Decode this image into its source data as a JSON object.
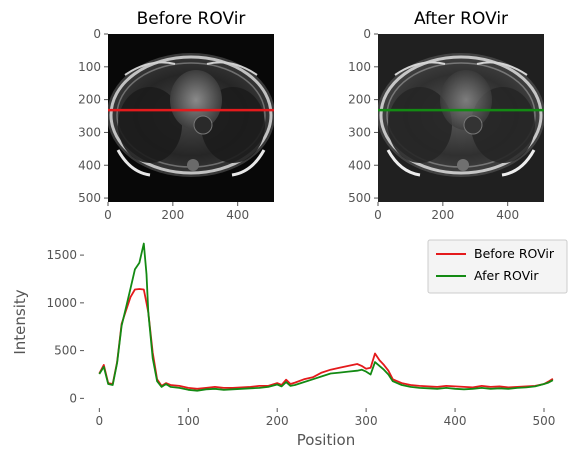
{
  "chart_data": [
    {
      "type": "image",
      "title": "Before ROVir",
      "xticks": [
        "0",
        "200",
        "400"
      ],
      "yticks": [
        "0",
        "100",
        "200",
        "300",
        "400",
        "500"
      ],
      "xlim": [
        0,
        512
      ],
      "ylim": [
        512,
        0
      ],
      "profile_line_y": 232,
      "profile_line_color": "#e41a1c"
    },
    {
      "type": "image",
      "title": "After ROVir",
      "xticks": [
        "0",
        "200",
        "400"
      ],
      "yticks": [
        "0",
        "100",
        "200",
        "300",
        "400",
        "500"
      ],
      "xlim": [
        0,
        512
      ],
      "ylim": [
        512,
        0
      ],
      "profile_line_y": 232,
      "profile_line_color": "#138a13"
    },
    {
      "type": "line",
      "xlabel": "Position",
      "ylabel": "Intensity",
      "xlim": [
        -15,
        527
      ],
      "ylim": [
        -80,
        1700
      ],
      "xticks": [
        0,
        100,
        200,
        300,
        400,
        500
      ],
      "yticks": [
        0,
        500,
        1000,
        1500
      ],
      "grid": false,
      "legend_position": "top-right",
      "series": [
        {
          "name": "Before ROVir",
          "color": "#e41a1c",
          "x": [
            0,
            5,
            10,
            15,
            20,
            25,
            30,
            35,
            40,
            45,
            50,
            53,
            55,
            60,
            65,
            70,
            75,
            80,
            90,
            100,
            110,
            120,
            130,
            140,
            150,
            160,
            170,
            180,
            190,
            200,
            205,
            210,
            215,
            220,
            230,
            240,
            250,
            260,
            270,
            280,
            290,
            295,
            300,
            305,
            310,
            315,
            320,
            325,
            330,
            340,
            350,
            360,
            370,
            380,
            390,
            400,
            410,
            420,
            430,
            440,
            450,
            460,
            470,
            480,
            490,
            500,
            505,
            510
          ],
          "y": [
            260,
            350,
            160,
            150,
            380,
            780,
            920,
            1060,
            1140,
            1145,
            1140,
            1000,
            900,
            480,
            200,
            130,
            160,
            140,
            130,
            110,
            100,
            110,
            120,
            110,
            110,
            115,
            120,
            130,
            130,
            160,
            140,
            195,
            150,
            165,
            200,
            220,
            270,
            300,
            320,
            340,
            360,
            340,
            310,
            320,
            470,
            400,
            350,
            290,
            200,
            160,
            140,
            130,
            125,
            120,
            130,
            125,
            120,
            115,
            130,
            120,
            125,
            115,
            120,
            125,
            130,
            150,
            175,
            205
          ]
        },
        {
          "name": "Afer ROVir",
          "color": "#138a13",
          "x": [
            0,
            5,
            10,
            15,
            20,
            25,
            30,
            35,
            40,
            45,
            48,
            50,
            53,
            55,
            60,
            65,
            70,
            75,
            80,
            90,
            100,
            110,
            120,
            130,
            140,
            150,
            160,
            170,
            180,
            190,
            200,
            205,
            210,
            215,
            220,
            230,
            240,
            250,
            260,
            270,
            280,
            290,
            295,
            300,
            305,
            310,
            315,
            320,
            325,
            330,
            340,
            350,
            360,
            370,
            380,
            390,
            400,
            410,
            420,
            430,
            440,
            450,
            460,
            470,
            480,
            490,
            500,
            505,
            510
          ],
          "y": [
            255,
            330,
            150,
            140,
            370,
            760,
            950,
            1150,
            1350,
            1420,
            1540,
            1620,
            1300,
            900,
            420,
            180,
            120,
            150,
            120,
            110,
            90,
            80,
            95,
            100,
            90,
            95,
            100,
            105,
            110,
            120,
            145,
            125,
            170,
            130,
            140,
            170,
            200,
            230,
            260,
            270,
            280,
            290,
            300,
            280,
            250,
            380,
            340,
            300,
            250,
            180,
            140,
            120,
            110,
            105,
            100,
            110,
            100,
            95,
            100,
            110,
            100,
            105,
            100,
            110,
            115,
            125,
            150,
            165,
            190
          ]
        }
      ]
    }
  ]
}
